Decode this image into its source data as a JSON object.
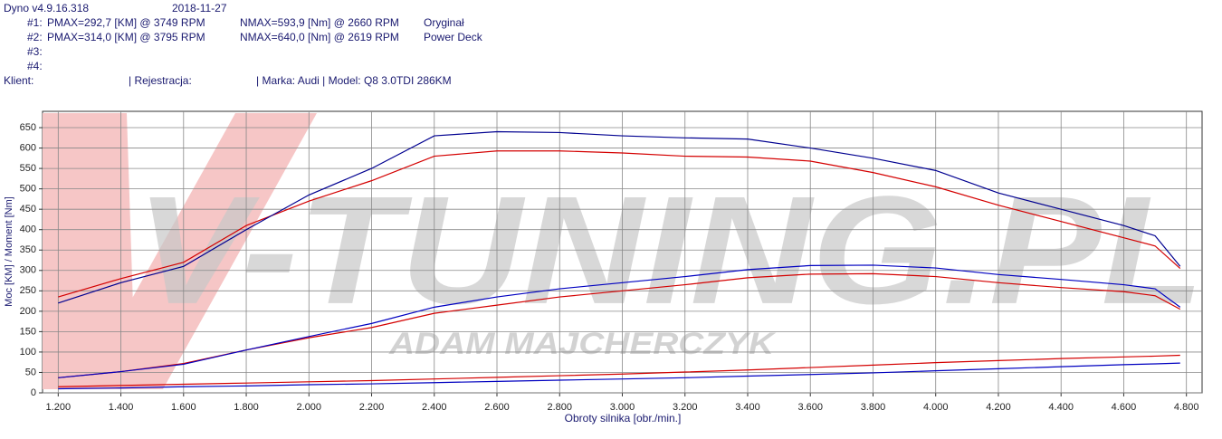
{
  "header": {
    "version": "Dyno v4.9.16.318",
    "date": "2018-11-27",
    "runs": [
      {
        "id": "#1:",
        "pmax": "PMAX=292,7 [KM] @ 3749 RPM",
        "nmax": "NMAX=593,9 [Nm] @ 2660 RPM",
        "label": "Oryginał"
      },
      {
        "id": "#2:",
        "pmax": "PMAX=314,0 [KM] @ 3795 RPM",
        "nmax": "NMAX=640,0 [Nm] @ 2619 RPM",
        "label": "Power Deck"
      },
      {
        "id": "#3:"
      },
      {
        "id": "#4:"
      }
    ],
    "client": "Klient:",
    "registration": "| Rejestracja:",
    "vehicle": "| Marka: Audi | Model: Q8 3.0TDI 286KM"
  },
  "watermark": {
    "brand": "V-TUNING.PL",
    "author": "ADAM MAJCHERCZYK"
  },
  "chart_data": {
    "type": "line",
    "x_label": "Obroty silnika [obr./min.]",
    "y_label": "Moc [KM] / Moment [Nm]",
    "x": [
      1200,
      1400,
      1600,
      1800,
      2000,
      2200,
      2400,
      2600,
      2800,
      3000,
      3200,
      3400,
      3600,
      3800,
      4000,
      4200,
      4400,
      4600,
      4700,
      4780
    ],
    "series": [
      {
        "color": "#d40000",
        "values": [
          235,
          280,
          320,
          410,
          470,
          520,
          580,
          593,
          593,
          588,
          580,
          578,
          568,
          540,
          505,
          460,
          420,
          380,
          360,
          305
        ]
      },
      {
        "color": "#000090",
        "values": [
          220,
          270,
          310,
          400,
          485,
          550,
          630,
          640,
          638,
          630,
          625,
          622,
          600,
          575,
          545,
          490,
          450,
          410,
          385,
          310
        ]
      },
      {
        "color": "#d40000",
        "values": [
          37,
          52,
          72,
          105,
          135,
          160,
          195,
          215,
          235,
          250,
          265,
          282,
          291,
          292,
          285,
          270,
          258,
          248,
          238,
          205
        ]
      },
      {
        "color": "#0000c0",
        "values": [
          37,
          52,
          70,
          105,
          138,
          170,
          210,
          235,
          255,
          270,
          285,
          302,
          312,
          313,
          306,
          290,
          278,
          265,
          255,
          210
        ]
      },
      {
        "color": "#d40000",
        "values": [
          15,
          18,
          21,
          24,
          27,
          30,
          34,
          38,
          42,
          46,
          51,
          56,
          62,
          68,
          74,
          79,
          84,
          88,
          90,
          92
        ]
      },
      {
        "color": "#0000c0",
        "values": [
          10,
          12,
          15,
          17,
          20,
          22,
          25,
          28,
          31,
          34,
          37,
          41,
          45,
          49,
          54,
          59,
          64,
          69,
          71,
          73
        ]
      }
    ],
    "xlim": [
      1150,
      4850
    ],
    "ylim": [
      0,
      690
    ],
    "xticks": [
      {
        "value": 1200,
        "label": "1.200"
      },
      {
        "value": 1400,
        "label": "1.400"
      },
      {
        "value": 1600,
        "label": "1.600"
      },
      {
        "value": 1800,
        "label": "1.800"
      },
      {
        "value": 2000,
        "label": "2.000"
      },
      {
        "value": 2200,
        "label": "2.200"
      },
      {
        "value": 2400,
        "label": "2.400"
      },
      {
        "value": 2600,
        "label": "2.600"
      },
      {
        "value": 2800,
        "label": "2.800"
      },
      {
        "value": 3000,
        "label": "3.000"
      },
      {
        "value": 3200,
        "label": "3.200"
      },
      {
        "value": 3400,
        "label": "3.400"
      },
      {
        "value": 3600,
        "label": "3.600"
      },
      {
        "value": 3800,
        "label": "3.800"
      },
      {
        "value": 4000,
        "label": "4.000"
      },
      {
        "value": 4200,
        "label": "4.200"
      },
      {
        "value": 4400,
        "label": "4.400"
      },
      {
        "value": 4600,
        "label": "4.600"
      },
      {
        "value": 4800,
        "label": "4.800"
      }
    ],
    "yticks": [
      0,
      50,
      100,
      150,
      200,
      250,
      300,
      350,
      400,
      450,
      500,
      550,
      600,
      650
    ],
    "grid": true
  }
}
